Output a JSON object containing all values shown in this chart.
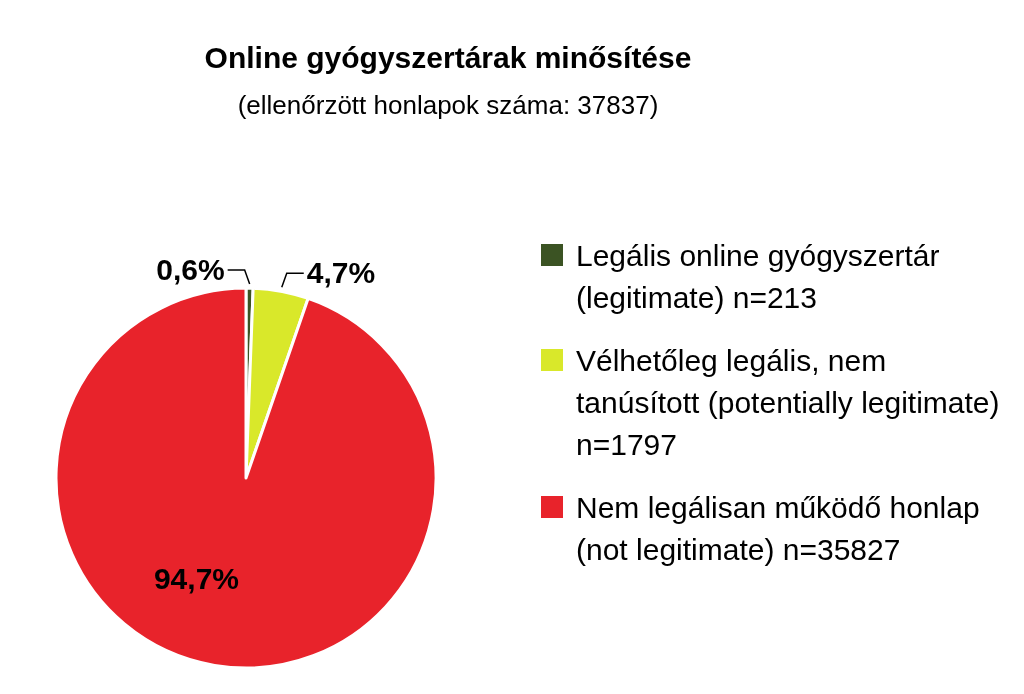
{
  "chart_data": {
    "type": "pie",
    "title": "Online gyógyszertárak minősítése",
    "subtitle": "(ellenőrzött honlapok száma: 37837)",
    "categories": [
      "Legális online gyógyszertár (legitimate) n=213",
      "Vélhetőleg legális, nem tanúsított (potentially legitimate) n=1797",
      "Nem legálisan működő honlap (not legitimate) n=35827"
    ],
    "values": [
      0.6,
      4.7,
      94.7
    ],
    "colors": [
      "#3b5323",
      "#d9e82a",
      "#e8232b"
    ],
    "value_labels": [
      "0,6%",
      "4,7%",
      "94,7%"
    ],
    "legend": "right"
  }
}
